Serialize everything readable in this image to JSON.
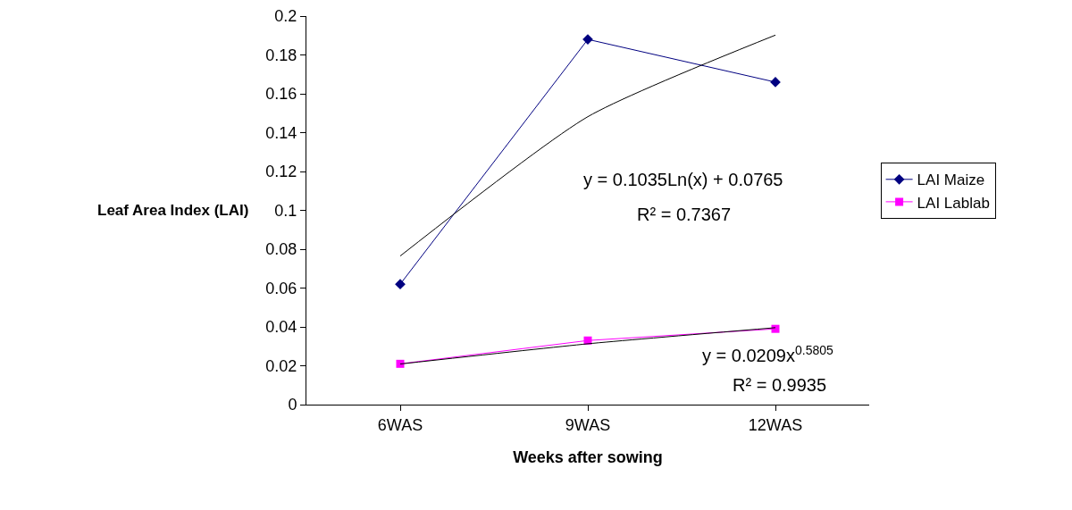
{
  "chart_data": {
    "type": "line",
    "xlabel": "Weeks after sowing",
    "ylabel": "Leaf Area Index (LAI)",
    "categories": [
      "6WAS",
      "9WAS",
      "12WAS"
    ],
    "ylim": [
      0,
      0.2
    ],
    "yticks": [
      0,
      0.02,
      0.04,
      0.06,
      0.08,
      0.1,
      0.12,
      0.14,
      0.16,
      0.18,
      0.2
    ],
    "grid": false,
    "legend": "right",
    "series": [
      {
        "name": "LAI Maize",
        "color": "#000080",
        "values": [
          0.062,
          0.188,
          0.166
        ],
        "marker": "diamond"
      },
      {
        "name": "LAI Lablab",
        "color": "#ff00ff",
        "values": [
          0.021,
          0.033,
          0.039
        ],
        "marker": "square"
      },
      {
        "type": "line",
        "color": "#000000",
        "marker": "none",
        "values": [
          0.0765,
          0.1482,
          0.1902
        ]
      },
      {
        "type": "line",
        "color": "#000000",
        "marker": "none",
        "values": [
          0.0209,
          0.0313,
          0.0396
        ]
      }
    ],
    "annotations": [
      "y = 0.1035Ln(x) + 0.0765",
      "R² = 0.7367",
      "y = 0.0209x$^{0.5805}$",
      "R² = 0.9935"
    ]
  }
}
